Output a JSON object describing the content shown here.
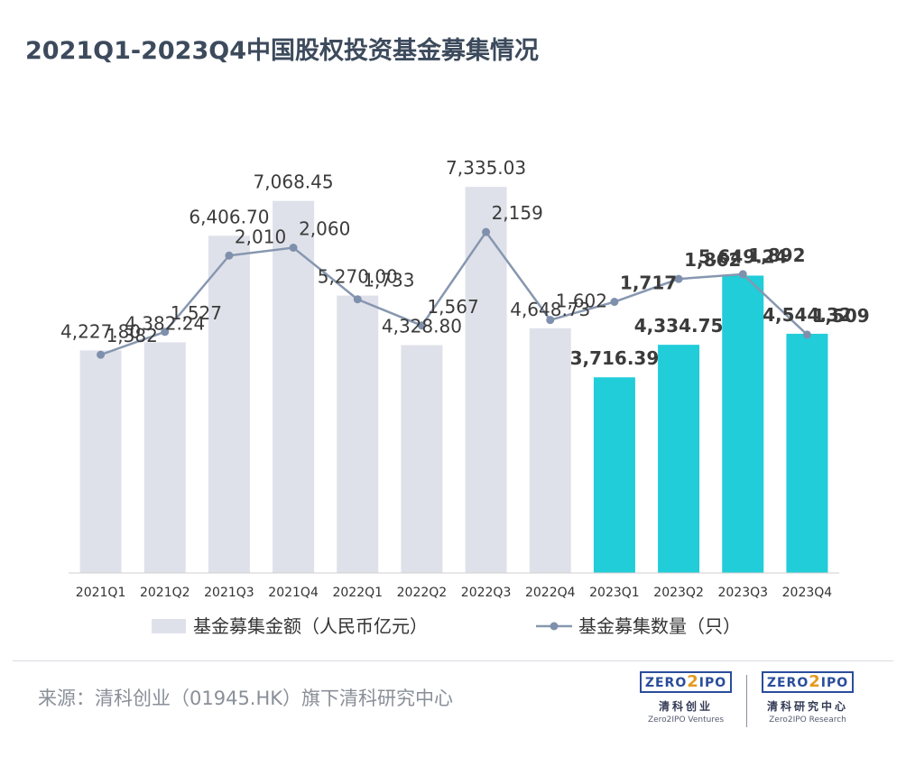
{
  "title": "2021Q1-2023Q4中国股权投资基金募集情况",
  "source": "来源：清科创业（01945.HK）旗下清科研究中心",
  "logos": [
    {
      "mark_a": "ZERO",
      "mark_b": "2",
      "mark_c": "IPO",
      "cn": "清科创业",
      "en": "Zero2IPO Ventures"
    },
    {
      "mark_a": "ZERO",
      "mark_b": "2",
      "mark_c": "IPO",
      "cn": "清科研究中心",
      "en": "Zero2IPO Research"
    }
  ],
  "chart_data": {
    "type": "bar+line",
    "categories": [
      "2021Q1",
      "2021Q2",
      "2021Q3",
      "2021Q4",
      "2022Q1",
      "2022Q2",
      "2022Q3",
      "2022Q4",
      "2023Q1",
      "2023Q2",
      "2023Q3",
      "2023Q4"
    ],
    "series": [
      {
        "name": "基金募集金额（人民币亿元）",
        "type": "bar",
        "values": [
          4227.8,
          4382.24,
          6406.7,
          7068.45,
          5270.0,
          4328.8,
          7335.03,
          4648.73,
          3716.39,
          4334.75,
          5649.24,
          4544.32
        ],
        "labels": [
          "4,227.80",
          "4,382.24",
          "6,406.70",
          "7,068.45",
          "5,270.00",
          "4,328.80",
          "7,335.03",
          "4,648.73",
          "3,716.39",
          "4,334.75",
          "5,649.24",
          "4,544.32"
        ]
      },
      {
        "name": "基金募集数量（只）",
        "type": "line",
        "values": [
          1382,
          1527,
          2010,
          2060,
          1733,
          1567,
          2159,
          1602,
          1717,
          1862,
          1892,
          1509
        ],
        "labels": [
          "1,382",
          "1,527",
          "2,010",
          "2,060",
          "1,733",
          "1,567",
          "2,159",
          "1,602",
          "1,717",
          "1,862",
          "1,892",
          "1,509"
        ]
      }
    ],
    "highlight_from_index": 8,
    "colors": {
      "bar_default": "#dfe1ea",
      "bar_highlight": "#20cdd8",
      "line": "#8797b0",
      "marker": "#7f90ad",
      "label": "#3b3b3b",
      "axis": "#cfcfcf"
    },
    "bar_axis": {
      "min": 0,
      "max": 7800
    },
    "line_axis": {
      "min": 0,
      "max": 2600
    },
    "legend_position": "bottom",
    "grid": false
  }
}
